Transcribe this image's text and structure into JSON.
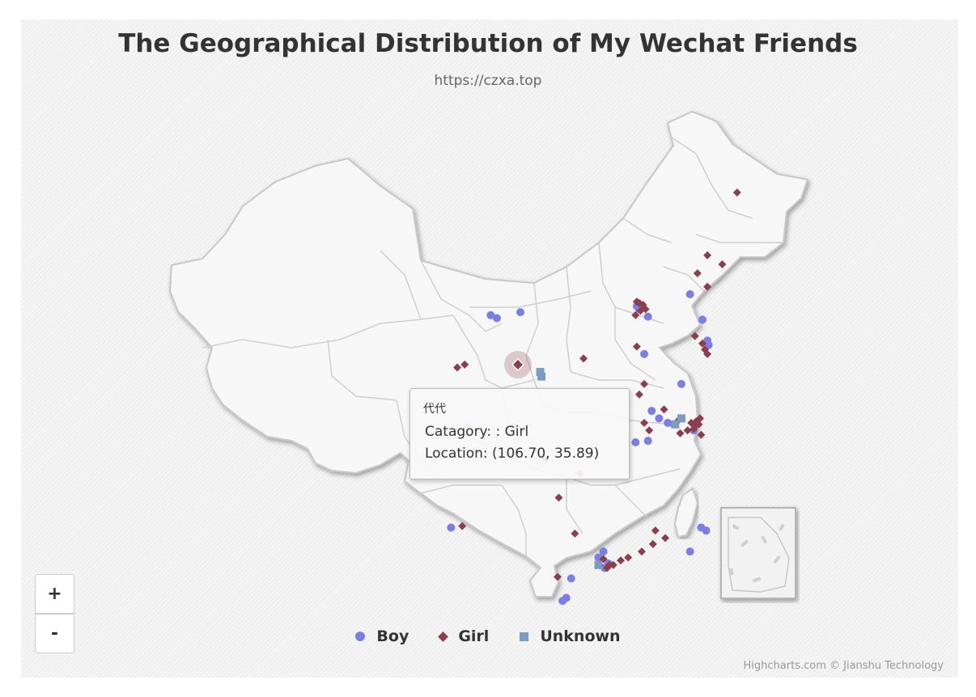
{
  "chart_data": {
    "type": "scatter",
    "title": "The Geographical Distribution of My Wechat Friends",
    "subtitle": "https://czxa.top",
    "credits": "Highcharts.com © Jianshu Technology",
    "legend_position": "bottom-center",
    "series": [
      {
        "name": "Boy",
        "color": "#7b7fe3",
        "marker": "circle",
        "points": [
          [
            104.5,
            39.2
          ],
          [
            105.0,
            39.0
          ],
          [
            106.9,
            39.4
          ],
          [
            116.4,
            40.0
          ],
          [
            116.3,
            39.8
          ],
          [
            116.5,
            39.6
          ],
          [
            117.2,
            39.1
          ],
          [
            120.6,
            40.6
          ],
          [
            121.6,
            38.9
          ],
          [
            122.0,
            37.5
          ],
          [
            122.1,
            37.2
          ],
          [
            116.9,
            36.6
          ],
          [
            119.9,
            34.6
          ],
          [
            117.5,
            32.8
          ],
          [
            118.1,
            32.3
          ],
          [
            118.8,
            32.0
          ],
          [
            119.3,
            31.9
          ],
          [
            120.9,
            31.5
          ],
          [
            117.2,
            30.8
          ],
          [
            116.2,
            30.7
          ],
          [
            102.7,
            31.7
          ],
          [
            106.3,
            31.7
          ],
          [
            101.3,
            25.0
          ],
          [
            114.0,
            22.6
          ],
          [
            113.7,
            22.3
          ],
          [
            113.3,
            22.9
          ],
          [
            113.2,
            23.0
          ],
          [
            113.6,
            23.4
          ],
          [
            111.0,
            21.6
          ],
          [
            110.3,
            20.1
          ],
          [
            110.6,
            20.3
          ],
          [
            121.5,
            25.0
          ],
          [
            121.9,
            24.8
          ],
          [
            120.6,
            23.4
          ]
        ]
      },
      {
        "name": "Girl",
        "color": "#8b3e4e",
        "marker": "diamond",
        "points": [
          [
            106.7,
            35.89
          ],
          [
            124.4,
            47.4
          ],
          [
            122.0,
            43.2
          ],
          [
            123.2,
            42.6
          ],
          [
            121.2,
            42.0
          ],
          [
            122.0,
            41.1
          ],
          [
            116.3,
            40.1
          ],
          [
            116.5,
            40.0
          ],
          [
            116.8,
            39.9
          ],
          [
            117.0,
            39.6
          ],
          [
            116.6,
            39.5
          ],
          [
            116.2,
            39.2
          ],
          [
            121.0,
            37.8
          ],
          [
            121.6,
            37.3
          ],
          [
            121.8,
            36.9
          ],
          [
            122.0,
            36.6
          ],
          [
            116.3,
            37.1
          ],
          [
            112.0,
            36.3
          ],
          [
            101.8,
            35.7
          ],
          [
            102.4,
            35.9
          ],
          [
            116.9,
            34.6
          ],
          [
            116.5,
            33.9
          ],
          [
            118.5,
            32.9
          ],
          [
            119.7,
            32.2
          ],
          [
            120.7,
            32.0
          ],
          [
            121.1,
            32.1
          ],
          [
            121.4,
            32.3
          ],
          [
            121.3,
            31.9
          ],
          [
            121.0,
            31.8
          ],
          [
            120.4,
            31.5
          ],
          [
            120.9,
            31.6
          ],
          [
            119.8,
            31.3
          ],
          [
            121.5,
            31.2
          ],
          [
            116.9,
            32.0
          ],
          [
            117.3,
            31.5
          ],
          [
            108.9,
            29.6
          ],
          [
            111.7,
            28.6
          ],
          [
            110.0,
            27.0
          ],
          [
            102.2,
            25.1
          ],
          [
            111.3,
            24.6
          ],
          [
            114.1,
            22.5
          ],
          [
            113.6,
            22.9
          ],
          [
            113.3,
            22.5
          ],
          [
            113.9,
            22.3
          ],
          [
            114.4,
            22.5
          ],
          [
            115.0,
            22.8
          ],
          [
            115.6,
            23.0
          ],
          [
            116.7,
            23.4
          ],
          [
            117.6,
            23.9
          ],
          [
            109.9,
            21.7
          ],
          [
            118.6,
            24.3
          ],
          [
            117.8,
            24.8
          ]
        ]
      },
      {
        "name": "Unknown",
        "color": "#7a9bc2",
        "marker": "square",
        "points": [
          [
            108.5,
            35.4
          ],
          [
            108.6,
            35.1
          ],
          [
            119.9,
            32.3
          ],
          [
            119.4,
            31.9
          ],
          [
            113.2,
            22.5
          ]
        ]
      }
    ]
  },
  "tooltip": {
    "name": "代代",
    "category_line": "Catagory: : Girl",
    "location_line": "Location:  (106.70, 35.89)"
  },
  "zoom": {
    "in_label": "+",
    "out_label": "-"
  }
}
